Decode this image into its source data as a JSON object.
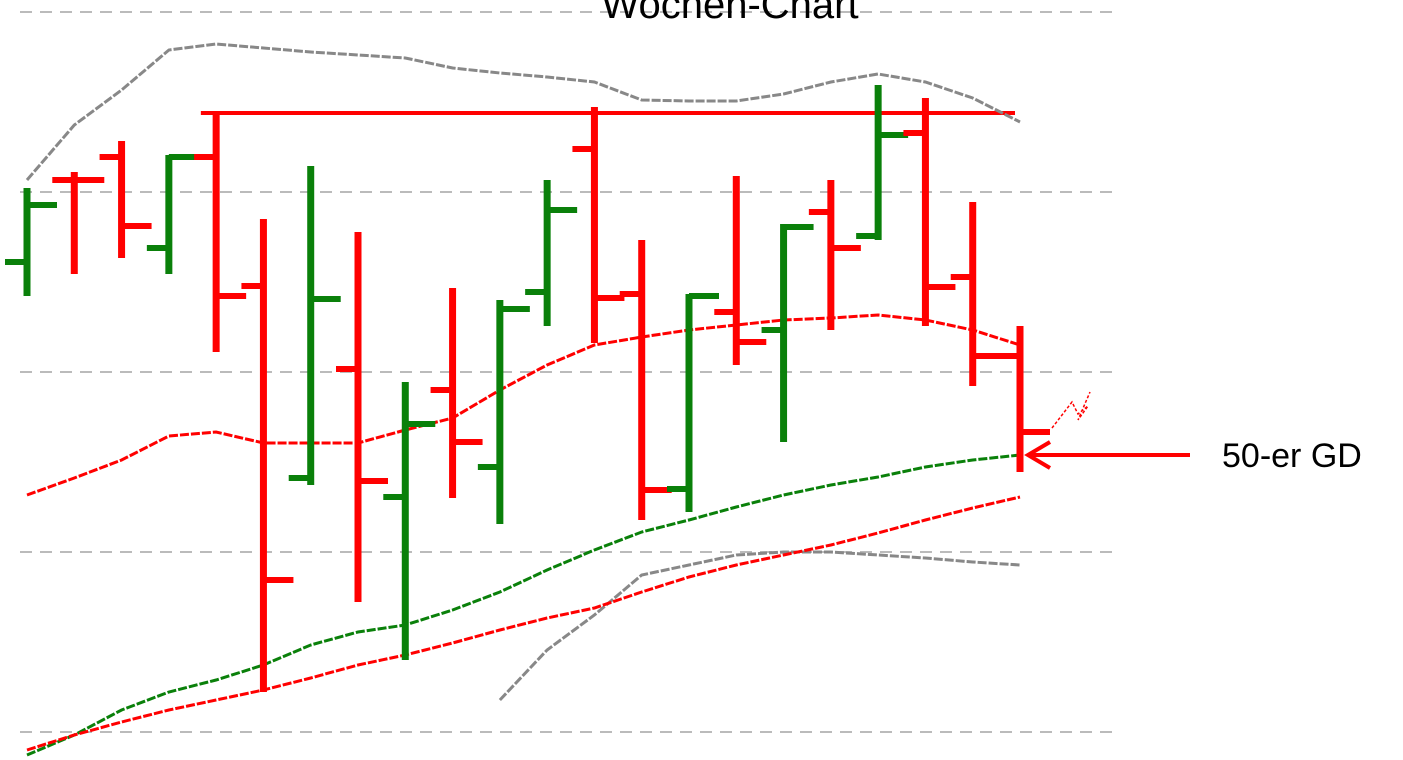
{
  "chart_data": {
    "type": "ohlc",
    "title": "Wochen-Chart",
    "annotation": "50-er GD",
    "up_color": "#0a800a",
    "down_color": "#ff0000",
    "open": [
      470,
      552,
      575,
      484,
      575,
      446,
      254,
      363,
      235,
      342,
      265,
      440,
      583,
      438,
      243,
      420,
      402,
      520,
      496,
      599,
      455,
      376
    ],
    "high": [
      544,
      560,
      591,
      577,
      620,
      513,
      566,
      500,
      350,
      444,
      432,
      552,
      625,
      492,
      438,
      556,
      508,
      552,
      647,
      634,
      530,
      406
    ],
    "low": [
      436,
      458,
      474,
      458,
      380,
      40,
      247,
      130,
      72,
      234,
      208,
      406,
      389,
      212,
      220,
      367,
      290,
      402,
      492,
      406,
      346,
      260
    ],
    "close": [
      527,
      552,
      506,
      575,
      436,
      152,
      433,
      251,
      308,
      290,
      423,
      522,
      434,
      242,
      436,
      390,
      505,
      484,
      597,
      445,
      376,
      300
    ],
    "lines": [
      {
        "color": "#888888",
        "values": [
          552,
          607,
          642,
          682,
          688,
          684,
          680,
          677,
          674,
          664,
          659,
          655,
          650,
          632,
          631,
          631,
          638,
          650,
          658,
          650,
          634,
          610
        ]
      },
      {
        "color": "#888888",
        "values": [
          null,
          null,
          null,
          null,
          null,
          null,
          null,
          null,
          null,
          null,
          32,
          82,
          117,
          157,
          167,
          177,
          180,
          180,
          177,
          174,
          170,
          167
        ]
      },
      {
        "color": "#ff0000",
        "values": [
          237,
          254,
          272,
          296,
          300,
          289,
          289,
          289,
          302,
          314,
          342,
          367,
          387,
          395,
          402,
          407,
          412,
          414,
          417,
          412,
          402,
          387
        ]
      },
      {
        "color": "#0a800a",
        "values": [
          -23,
          -3,
          22,
          40,
          52,
          67,
          87,
          100,
          107,
          122,
          140,
          162,
          182,
          200,
          212,
          225,
          237,
          247,
          255,
          265,
          272,
          277
        ]
      },
      {
        "color": "#ff0000",
        "values": [
          -18,
          -3,
          10,
          22,
          32,
          42,
          54,
          67,
          77,
          89,
          102,
          114,
          124,
          140,
          155,
          167,
          177,
          187,
          199,
          212,
          224,
          235
        ]
      }
    ],
    "resistance": 619,
    "resistance_color": "#ff0000",
    "ylim": [
      -28,
      732
    ],
    "yticks": [
      0,
      180,
      360,
      540,
      720
    ],
    "grid": true
  }
}
